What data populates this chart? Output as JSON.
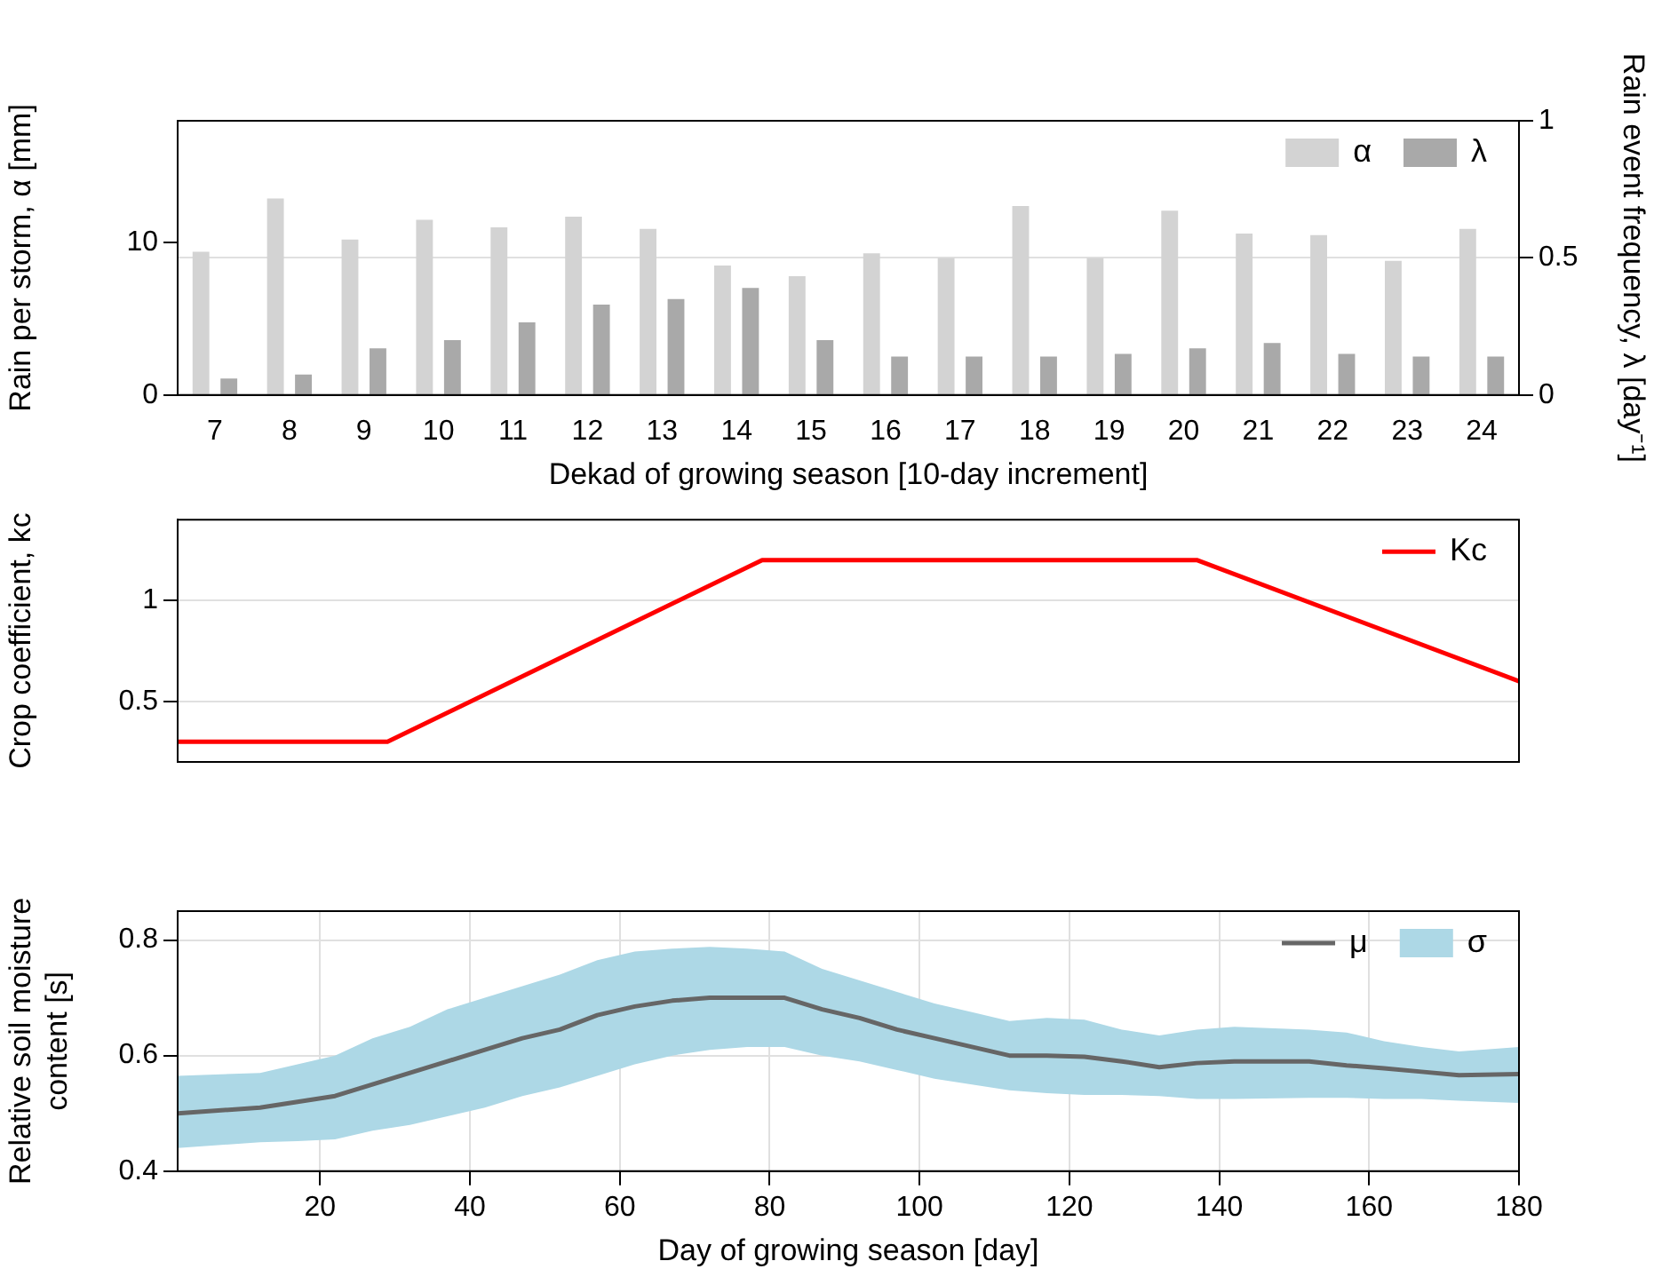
{
  "chart_data": [
    {
      "type": "bar",
      "xlabel": "Dekad of growing season [10-day increment]",
      "ylabel": "Rain per storm, α [mm]",
      "y2label": "Rain event frequency, λ [day⁻¹]",
      "categories": [
        "7",
        "8",
        "9",
        "10",
        "11",
        "12",
        "13",
        "14",
        "15",
        "16",
        "17",
        "18",
        "19",
        "20",
        "21",
        "22",
        "23",
        "24"
      ],
      "series": [
        {
          "name": "α",
          "color": "#d3d3d3",
          "values": [
            9.4,
            12.9,
            10.2,
            11.5,
            11.0,
            11.7,
            10.9,
            8.5,
            7.8,
            9.3,
            9.0,
            12.4,
            9.0,
            12.1,
            10.6,
            10.5,
            8.8,
            10.9
          ]
        },
        {
          "name": "λ",
          "color": "#a9a9a9",
          "axis": "y2",
          "values": [
            0.06,
            0.075,
            0.17,
            0.2,
            0.265,
            0.33,
            0.35,
            0.39,
            0.2,
            0.14,
            0.14,
            0.14,
            0.15,
            0.17,
            0.19,
            0.15,
            0.14,
            0.14
          ]
        }
      ],
      "ylim": [
        0,
        18
      ],
      "yticks": [
        0,
        10
      ],
      "y2lim": [
        0,
        1
      ],
      "y2ticks": [
        0,
        0.5,
        1
      ],
      "grid": "y2",
      "legend": "top right"
    },
    {
      "type": "line",
      "ylabel": "Crop coefficient, kc",
      "x": [
        1,
        29,
        79,
        137,
        180
      ],
      "series": [
        {
          "name": "Kc",
          "color": "#ff0000",
          "values": [
            0.3,
            0.3,
            1.2,
            1.2,
            0.6
          ]
        }
      ],
      "xlim": [
        1,
        180
      ],
      "ylim": [
        0.2,
        1.4
      ],
      "yticks": [
        0.5,
        1
      ],
      "grid": "y",
      "legend": "top right",
      "tick_labels": "y"
    },
    {
      "type": "line",
      "xlabel": "Day of growing season [day]",
      "ylabel": "Relative soil moisture content [s]",
      "x": [
        1,
        12,
        17,
        22,
        27,
        32,
        37,
        42,
        47,
        52,
        57,
        62,
        67,
        72,
        77,
        82,
        87,
        92,
        97,
        102,
        107,
        112,
        117,
        122,
        127,
        132,
        137,
        142,
        152,
        157,
        162,
        167,
        172,
        180
      ],
      "series": [
        {
          "name": "μ",
          "color": "#666666",
          "values": [
            0.5,
            0.51,
            0.52,
            0.53,
            0.55,
            0.57,
            0.59,
            0.61,
            0.63,
            0.645,
            0.67,
            0.685,
            0.695,
            0.7,
            0.7,
            0.7,
            0.68,
            0.665,
            0.645,
            0.63,
            0.615,
            0.6,
            0.6,
            0.598,
            0.59,
            0.58,
            0.587,
            0.59,
            0.59,
            0.583,
            0.578,
            0.572,
            0.566,
            0.568
          ]
        },
        {
          "name": "σ",
          "type": "area",
          "color": "#add8e6",
          "values": [
            null,
            null,
            null,
            null,
            null,
            null,
            null,
            null,
            null,
            null,
            null,
            null,
            null,
            null,
            null,
            null,
            null,
            null,
            null,
            null,
            null,
            null,
            null,
            null,
            null,
            null,
            null,
            null,
            null,
            null,
            null,
            null,
            null,
            null
          ],
          "upper": [
            0.565,
            0.57,
            0.585,
            0.6,
            0.63,
            0.65,
            0.68,
            0.7,
            0.72,
            0.74,
            0.765,
            0.78,
            0.785,
            0.788,
            0.785,
            0.78,
            0.75,
            0.73,
            0.71,
            0.69,
            0.675,
            0.66,
            0.665,
            0.662,
            0.645,
            0.635,
            0.645,
            0.65,
            0.645,
            0.64,
            0.625,
            0.615,
            0.607,
            0.615
          ],
          "lower": [
            0.44,
            0.45,
            0.452,
            0.455,
            0.47,
            0.48,
            0.495,
            0.51,
            0.53,
            0.545,
            0.565,
            0.585,
            0.6,
            0.61,
            0.615,
            0.615,
            0.6,
            0.59,
            0.575,
            0.56,
            0.55,
            0.54,
            0.535,
            0.532,
            0.532,
            0.53,
            0.525,
            0.525,
            0.527,
            0.527,
            0.525,
            0.525,
            0.522,
            0.518
          ]
        }
      ],
      "xlim": [
        1,
        180
      ],
      "xticks": [
        20,
        40,
        60,
        80,
        100,
        120,
        140,
        160,
        180
      ],
      "ylim": [
        0.4,
        0.85
      ],
      "yticks": [
        0.4,
        0.6,
        0.8
      ],
      "grid": true,
      "legend": "top right"
    }
  ]
}
